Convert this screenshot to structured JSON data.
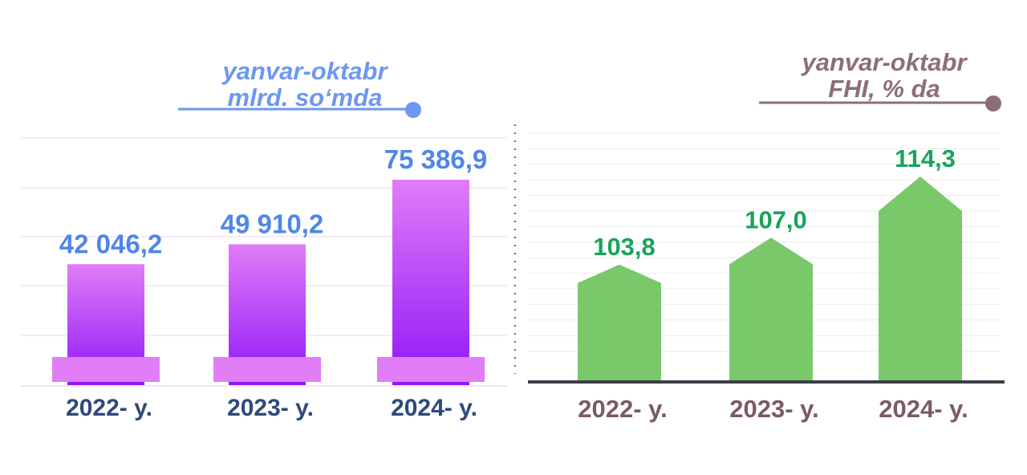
{
  "chart_data": [
    {
      "type": "bar",
      "title": "yanvar-oktabr",
      "subtitle": "mlrd. so‘mda",
      "categories": [
        "2022- y.",
        "2023- y.",
        "2024- y."
      ],
      "values": [
        42046.2,
        49910.2,
        75386.9
      ],
      "value_labels": [
        "42 046,2",
        "49 910,2",
        "75 386,9"
      ],
      "ylim": [
        0,
        80000
      ],
      "grid": true,
      "colors": {
        "bar_top": "#e07df7",
        "bar_bottom": "#8f16f7",
        "base": "#e07df7",
        "value": "#4f86e8",
        "tick": "#2f4a7a",
        "title": "#6d97f2"
      }
    },
    {
      "type": "bar",
      "title": "yanvar-oktabr",
      "subtitle": "FHI, % da",
      "categories": [
        "2022- y.",
        "2023- y.",
        "2024- y."
      ],
      "values": [
        103.8,
        107.0,
        114.3
      ],
      "value_labels": [
        "103,8",
        "107,0",
        "114,3"
      ],
      "ylim": [
        90,
        118
      ],
      "grid": true,
      "colors": {
        "bar": "#79c96b",
        "value": "#19a35a",
        "tick": "#7a5a66",
        "title": "#8d6e78",
        "axis": "#3c3f47"
      }
    }
  ]
}
